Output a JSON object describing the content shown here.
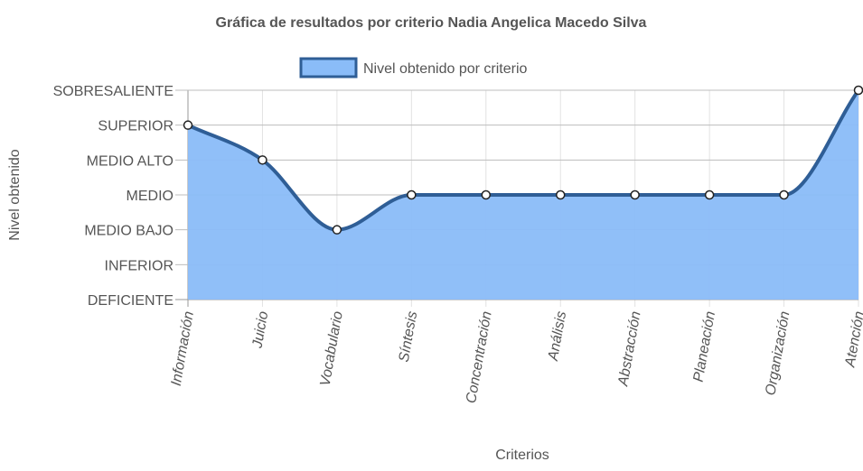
{
  "chart_data": {
    "type": "area",
    "title": "Gráfica de resultados por criterio Nadia Angelica Macedo Silva",
    "xlabel": "Criterios",
    "ylabel": "Nivel obtenido",
    "categories": [
      "Información",
      "Juicio",
      "Vocabulario",
      "Síntesis",
      "Concentración",
      "Análisis",
      "Abstracción",
      "Planeación",
      "Organización",
      "Atención"
    ],
    "y_levels": [
      "DEFICIENTE",
      "INFERIOR",
      "MEDIO BAJO",
      "MEDIO",
      "MEDIO ALTO",
      "SUPERIOR",
      "SOBRESALIENTE"
    ],
    "ylim": [
      0,
      6
    ],
    "grid": true,
    "legend_position": "top",
    "series": [
      {
        "name": "Nivel obtenido por criterio",
        "values": [
          5,
          4,
          2,
          3,
          3,
          3,
          3,
          3,
          3,
          6
        ],
        "fill_color": "#8ABCF8",
        "line_color": "#2F5E96"
      }
    ]
  }
}
